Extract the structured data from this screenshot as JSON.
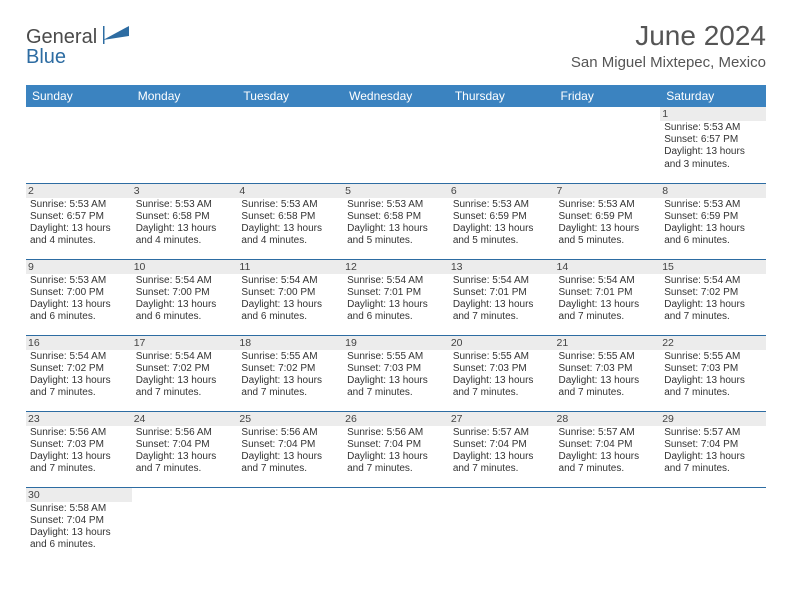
{
  "brand": {
    "part1": "General",
    "part2": "Blue",
    "icon_color": "#2d6ca2"
  },
  "title": "June 2024",
  "location": "San Miguel Mixtepec, Mexico",
  "colors": {
    "header_bg": "#3b83c0",
    "header_text": "#ffffff",
    "row_border": "#2d6ca2",
    "daynum_bg": "#ececec",
    "text": "#333333"
  },
  "weekdays": [
    "Sunday",
    "Monday",
    "Tuesday",
    "Wednesday",
    "Thursday",
    "Friday",
    "Saturday"
  ],
  "weeks": [
    [
      null,
      null,
      null,
      null,
      null,
      null,
      {
        "n": "1",
        "sunrise": "Sunrise: 5:53 AM",
        "sunset": "Sunset: 6:57 PM",
        "daylight": "Daylight: 13 hours and 3 minutes."
      }
    ],
    [
      {
        "n": "2",
        "sunrise": "Sunrise: 5:53 AM",
        "sunset": "Sunset: 6:57 PM",
        "daylight": "Daylight: 13 hours and 4 minutes."
      },
      {
        "n": "3",
        "sunrise": "Sunrise: 5:53 AM",
        "sunset": "Sunset: 6:58 PM",
        "daylight": "Daylight: 13 hours and 4 minutes."
      },
      {
        "n": "4",
        "sunrise": "Sunrise: 5:53 AM",
        "sunset": "Sunset: 6:58 PM",
        "daylight": "Daylight: 13 hours and 4 minutes."
      },
      {
        "n": "5",
        "sunrise": "Sunrise: 5:53 AM",
        "sunset": "Sunset: 6:58 PM",
        "daylight": "Daylight: 13 hours and 5 minutes."
      },
      {
        "n": "6",
        "sunrise": "Sunrise: 5:53 AM",
        "sunset": "Sunset: 6:59 PM",
        "daylight": "Daylight: 13 hours and 5 minutes."
      },
      {
        "n": "7",
        "sunrise": "Sunrise: 5:53 AM",
        "sunset": "Sunset: 6:59 PM",
        "daylight": "Daylight: 13 hours and 5 minutes."
      },
      {
        "n": "8",
        "sunrise": "Sunrise: 5:53 AM",
        "sunset": "Sunset: 6:59 PM",
        "daylight": "Daylight: 13 hours and 6 minutes."
      }
    ],
    [
      {
        "n": "9",
        "sunrise": "Sunrise: 5:53 AM",
        "sunset": "Sunset: 7:00 PM",
        "daylight": "Daylight: 13 hours and 6 minutes."
      },
      {
        "n": "10",
        "sunrise": "Sunrise: 5:54 AM",
        "sunset": "Sunset: 7:00 PM",
        "daylight": "Daylight: 13 hours and 6 minutes."
      },
      {
        "n": "11",
        "sunrise": "Sunrise: 5:54 AM",
        "sunset": "Sunset: 7:00 PM",
        "daylight": "Daylight: 13 hours and 6 minutes."
      },
      {
        "n": "12",
        "sunrise": "Sunrise: 5:54 AM",
        "sunset": "Sunset: 7:01 PM",
        "daylight": "Daylight: 13 hours and 6 minutes."
      },
      {
        "n": "13",
        "sunrise": "Sunrise: 5:54 AM",
        "sunset": "Sunset: 7:01 PM",
        "daylight": "Daylight: 13 hours and 7 minutes."
      },
      {
        "n": "14",
        "sunrise": "Sunrise: 5:54 AM",
        "sunset": "Sunset: 7:01 PM",
        "daylight": "Daylight: 13 hours and 7 minutes."
      },
      {
        "n": "15",
        "sunrise": "Sunrise: 5:54 AM",
        "sunset": "Sunset: 7:02 PM",
        "daylight": "Daylight: 13 hours and 7 minutes."
      }
    ],
    [
      {
        "n": "16",
        "sunrise": "Sunrise: 5:54 AM",
        "sunset": "Sunset: 7:02 PM",
        "daylight": "Daylight: 13 hours and 7 minutes."
      },
      {
        "n": "17",
        "sunrise": "Sunrise: 5:54 AM",
        "sunset": "Sunset: 7:02 PM",
        "daylight": "Daylight: 13 hours and 7 minutes."
      },
      {
        "n": "18",
        "sunrise": "Sunrise: 5:55 AM",
        "sunset": "Sunset: 7:02 PM",
        "daylight": "Daylight: 13 hours and 7 minutes."
      },
      {
        "n": "19",
        "sunrise": "Sunrise: 5:55 AM",
        "sunset": "Sunset: 7:03 PM",
        "daylight": "Daylight: 13 hours and 7 minutes."
      },
      {
        "n": "20",
        "sunrise": "Sunrise: 5:55 AM",
        "sunset": "Sunset: 7:03 PM",
        "daylight": "Daylight: 13 hours and 7 minutes."
      },
      {
        "n": "21",
        "sunrise": "Sunrise: 5:55 AM",
        "sunset": "Sunset: 7:03 PM",
        "daylight": "Daylight: 13 hours and 7 minutes."
      },
      {
        "n": "22",
        "sunrise": "Sunrise: 5:55 AM",
        "sunset": "Sunset: 7:03 PM",
        "daylight": "Daylight: 13 hours and 7 minutes."
      }
    ],
    [
      {
        "n": "23",
        "sunrise": "Sunrise: 5:56 AM",
        "sunset": "Sunset: 7:03 PM",
        "daylight": "Daylight: 13 hours and 7 minutes."
      },
      {
        "n": "24",
        "sunrise": "Sunrise: 5:56 AM",
        "sunset": "Sunset: 7:04 PM",
        "daylight": "Daylight: 13 hours and 7 minutes."
      },
      {
        "n": "25",
        "sunrise": "Sunrise: 5:56 AM",
        "sunset": "Sunset: 7:04 PM",
        "daylight": "Daylight: 13 hours and 7 minutes."
      },
      {
        "n": "26",
        "sunrise": "Sunrise: 5:56 AM",
        "sunset": "Sunset: 7:04 PM",
        "daylight": "Daylight: 13 hours and 7 minutes."
      },
      {
        "n": "27",
        "sunrise": "Sunrise: 5:57 AM",
        "sunset": "Sunset: 7:04 PM",
        "daylight": "Daylight: 13 hours and 7 minutes."
      },
      {
        "n": "28",
        "sunrise": "Sunrise: 5:57 AM",
        "sunset": "Sunset: 7:04 PM",
        "daylight": "Daylight: 13 hours and 7 minutes."
      },
      {
        "n": "29",
        "sunrise": "Sunrise: 5:57 AM",
        "sunset": "Sunset: 7:04 PM",
        "daylight": "Daylight: 13 hours and 7 minutes."
      }
    ],
    [
      {
        "n": "30",
        "sunrise": "Sunrise: 5:58 AM",
        "sunset": "Sunset: 7:04 PM",
        "daylight": "Daylight: 13 hours and 6 minutes."
      },
      null,
      null,
      null,
      null,
      null,
      null
    ]
  ]
}
